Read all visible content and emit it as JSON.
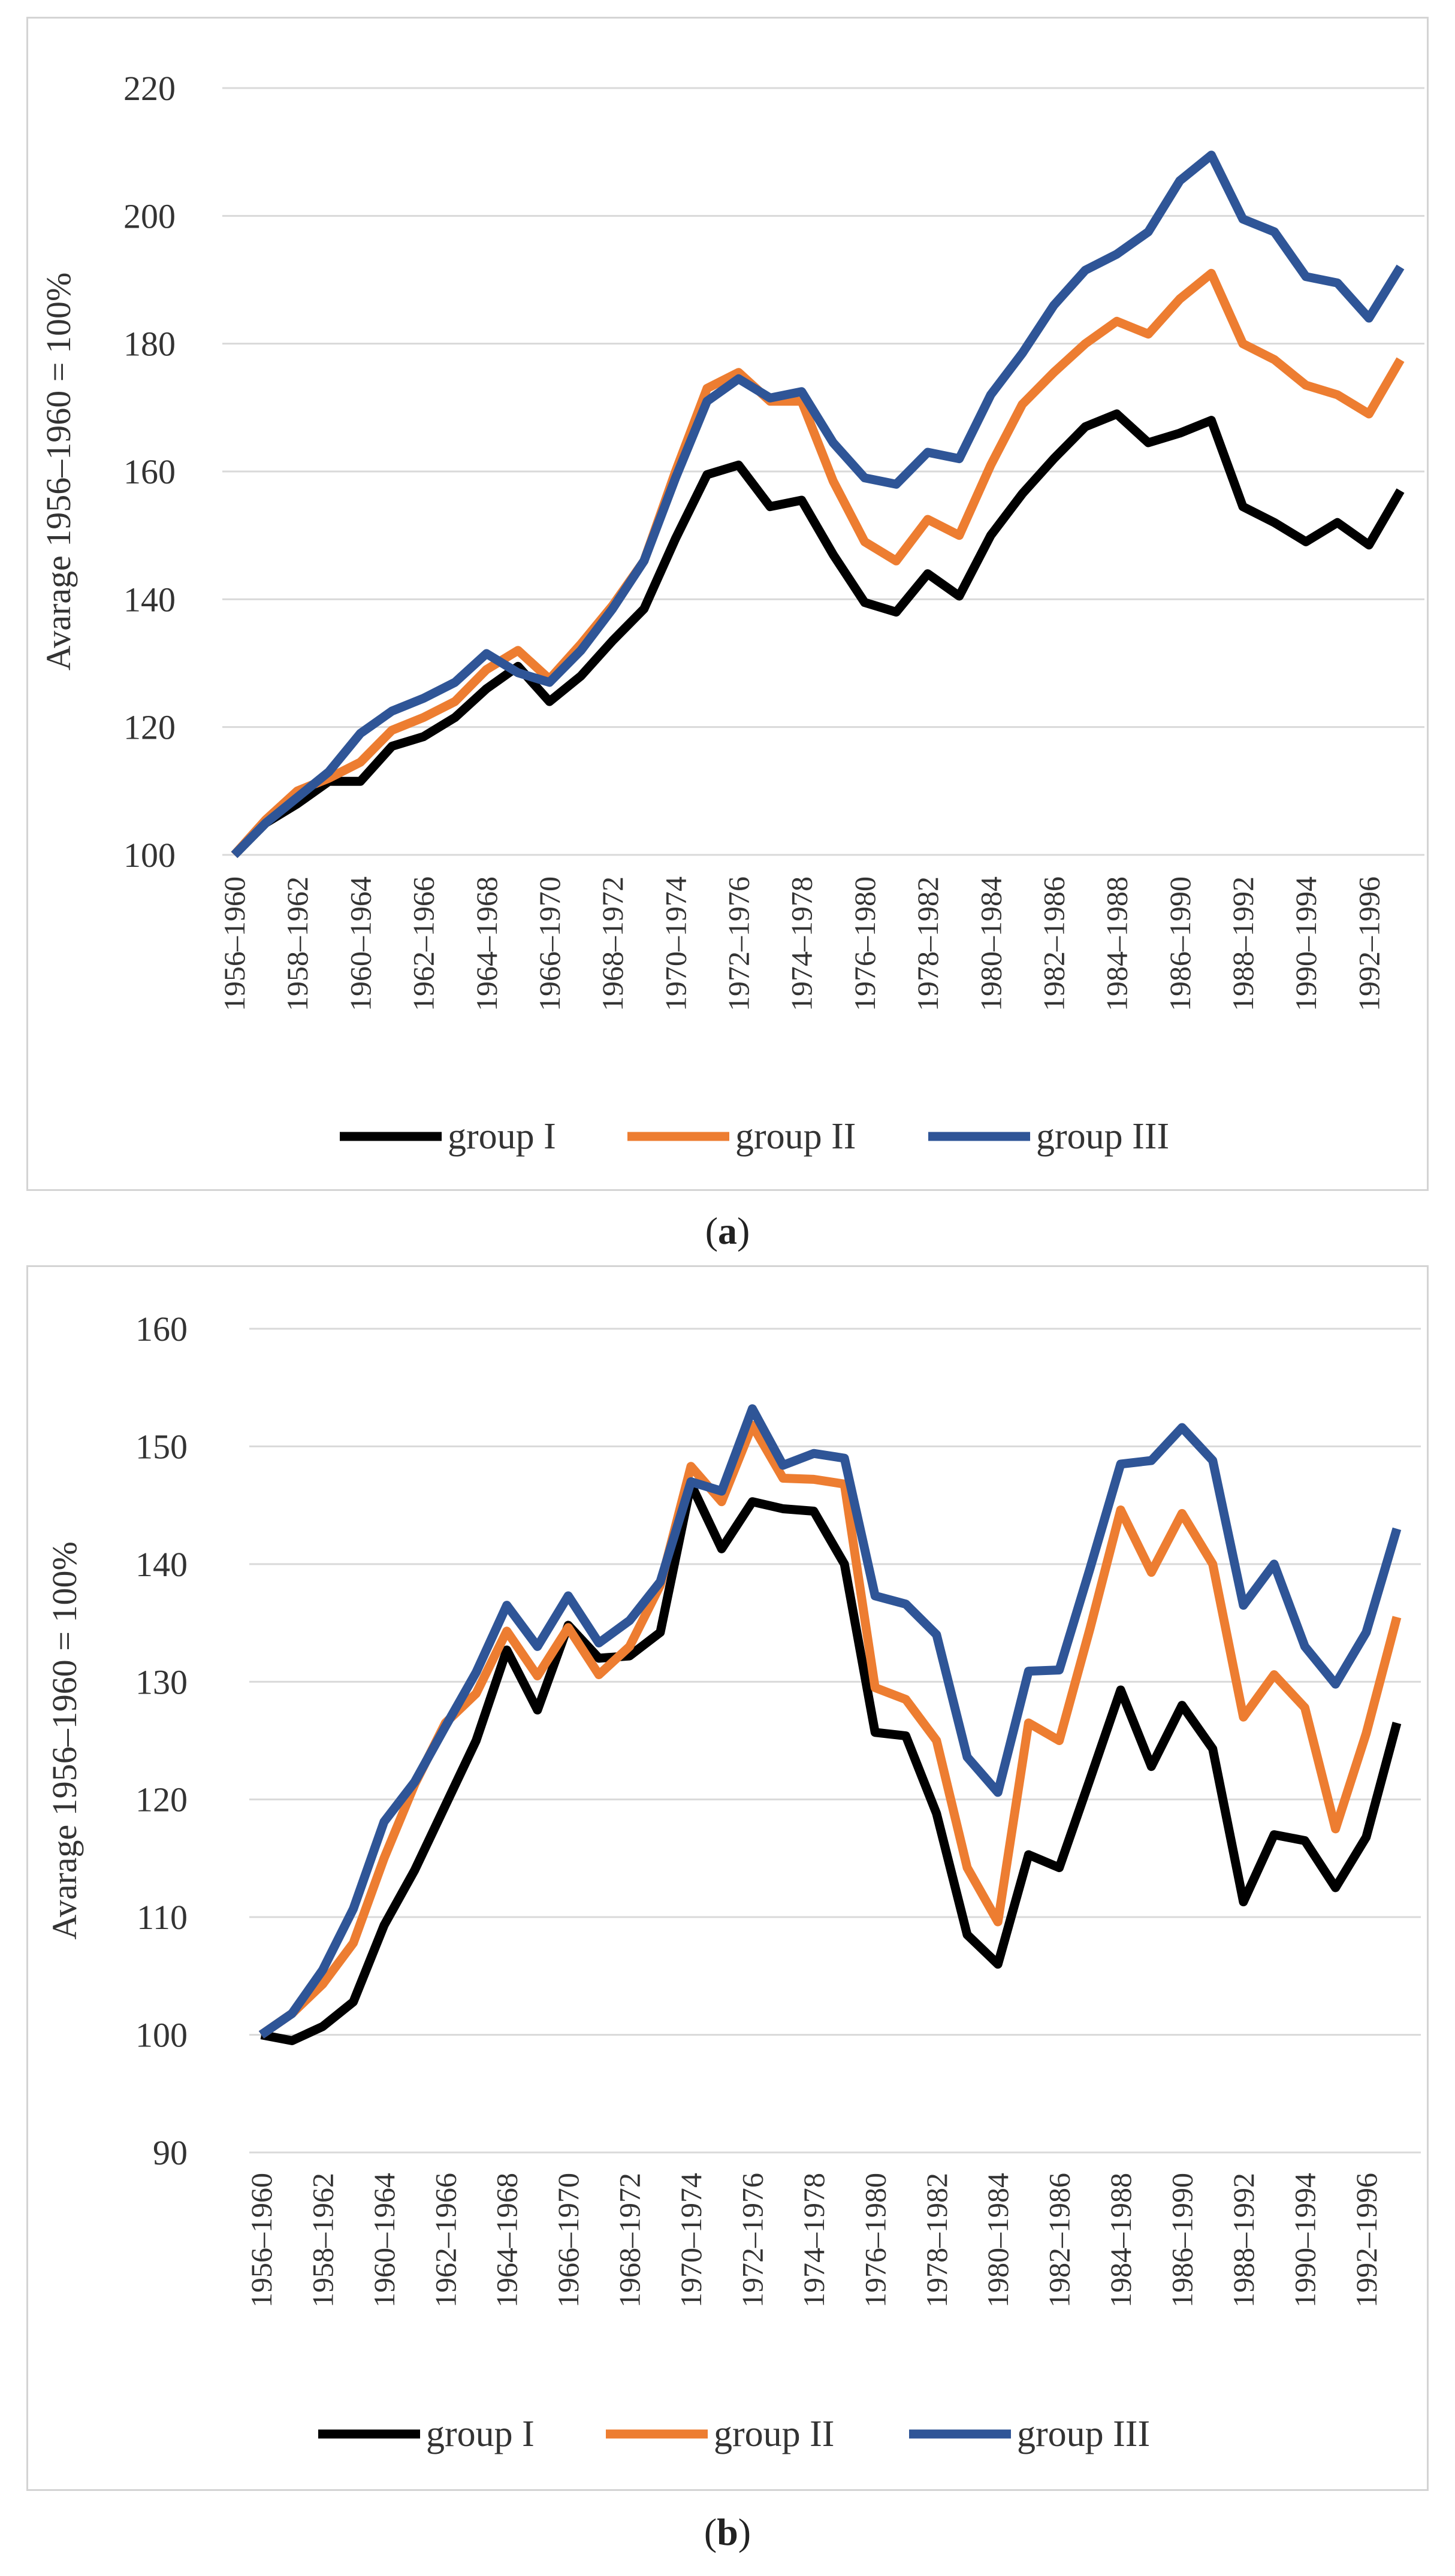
{
  "chart_data": [
    {
      "panel": "a",
      "caption": "(a)",
      "type": "line",
      "title": "",
      "xlabel": "",
      "ylabel": "Avarage 1956–1960 = 100%",
      "ylim": [
        100,
        220
      ],
      "yticks": [
        100,
        120,
        140,
        160,
        180,
        200,
        220
      ],
      "grid": true,
      "legend_position": "bottom-center",
      "x_tick_labels": [
        "1956–1960",
        "1958–1962",
        "1960–1964",
        "1962–1966",
        "1964–1968",
        "1966–1970",
        "1968–1972",
        "1970–1974",
        "1972–1976",
        "1974–1978",
        "1976–1980",
        "1978–1982",
        "1980–1984",
        "1982–1986",
        "1984–1988",
        "1986–1990",
        "1988–1992",
        "1990–1994",
        "1992–1996"
      ],
      "series": [
        {
          "name": "group I",
          "color": "#000000",
          "values": [
            100,
            105,
            108,
            111.5,
            111.5,
            117,
            118.5,
            121.5,
            126,
            129.5,
            124,
            128,
            133.5,
            138.5,
            149.5,
            159.5,
            161,
            154.5,
            155.5,
            147,
            139.5,
            138,
            144,
            140.5,
            150,
            156.5,
            162,
            167,
            169,
            164.5,
            166,
            168,
            154.5,
            152,
            149,
            152,
            148.5,
            157
          ]
        },
        {
          "name": "group II",
          "color": "#ED7D31",
          "values": [
            100,
            105.5,
            110,
            112,
            114.5,
            119.5,
            121.5,
            124,
            129,
            132,
            127.5,
            133,
            139,
            146,
            160,
            173,
            175.5,
            171,
            171,
            158.5,
            149,
            146,
            152.5,
            150,
            161,
            170.5,
            175.5,
            180,
            183.5,
            181.5,
            187,
            191,
            180,
            177.5,
            173.5,
            172,
            169,
            177.5
          ]
        },
        {
          "name": "group III",
          "color": "#2F5597",
          "values": [
            100,
            105,
            109,
            113,
            119,
            122.5,
            124.5,
            127,
            131.5,
            128.5,
            127,
            132,
            138.5,
            146,
            159,
            171,
            174.5,
            171.5,
            172.5,
            164.5,
            159,
            158,
            163,
            162,
            172,
            178.5,
            186,
            191.5,
            194,
            197.5,
            205.5,
            209.5,
            199.5,
            197.5,
            190.5,
            189.5,
            184,
            192
          ]
        }
      ]
    },
    {
      "panel": "b",
      "caption": "(b)",
      "type": "line",
      "title": "",
      "xlabel": "",
      "ylabel": "Avarage 1956–1960 = 100%",
      "ylim": [
        90,
        160
      ],
      "yticks": [
        90,
        100,
        110,
        120,
        130,
        140,
        150,
        160
      ],
      "grid": true,
      "legend_position": "bottom-center",
      "x_tick_labels": [
        "1956–1960",
        "1958–1962",
        "1960–1964",
        "1962–1966",
        "1964–1968",
        "1966–1970",
        "1968–1972",
        "1970–1974",
        "1972–1976",
        "1974–1978",
        "1976–1980",
        "1978–1982",
        "1980–1984",
        "1982–1986",
        "1984–1988",
        "1986–1990",
        "1988–1992",
        "1990–1994",
        "1992–1996"
      ],
      "series": [
        {
          "name": "group I",
          "color": "#000000",
          "values": [
            100,
            99.5,
            100.7,
            102.8,
            109.3,
            114,
            119.5,
            125,
            132.7,
            127.6,
            134.8,
            132,
            132.2,
            134.2,
            146.8,
            141.3,
            145.3,
            144.7,
            144.5,
            140,
            125.7,
            125.4,
            118.8,
            108.5,
            106,
            115.3,
            114.2,
            121.7,
            129.3,
            122.8,
            128,
            124.3,
            111.3,
            117,
            116.5,
            112.5,
            116.8,
            126.5
          ]
        },
        {
          "name": "group II",
          "color": "#ED7D31",
          "values": [
            100,
            101.8,
            104.3,
            107.8,
            115,
            121.3,
            126.5,
            129,
            134.3,
            130.5,
            134.6,
            130.6,
            133,
            138.2,
            148.3,
            145.3,
            151.8,
            147.3,
            147.2,
            146.8,
            129.5,
            128.5,
            125,
            114.2,
            109.6,
            126.5,
            125,
            134.5,
            144.6,
            139.3,
            144.3,
            140,
            127,
            130.6,
            127.8,
            117.5,
            125.6,
            135.5
          ]
        },
        {
          "name": "group III",
          "color": "#2F5597",
          "values": [
            100,
            101.8,
            105.5,
            110.7,
            118.1,
            121.5,
            126.2,
            130.8,
            136.5,
            133,
            137.3,
            133.3,
            135.2,
            138.5,
            147,
            146.2,
            153.2,
            148.4,
            149.4,
            149,
            137.3,
            136.6,
            134,
            123.6,
            120.6,
            130.9,
            131,
            139.6,
            148.5,
            148.8,
            151.6,
            148.8,
            136.5,
            140,
            133,
            129.8,
            134.2,
            143
          ]
        }
      ]
    }
  ]
}
